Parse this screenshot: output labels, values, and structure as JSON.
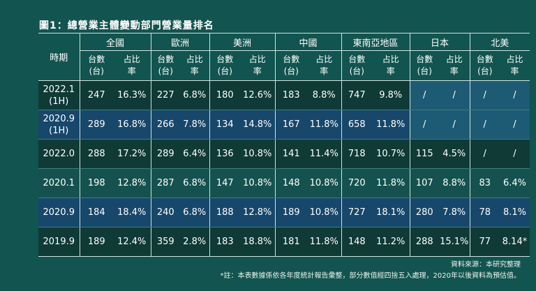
{
  "title": "圖1：總營業主體變動部門營業量排名",
  "header": {
    "period": "時期",
    "groups": [
      "全國",
      "歐洲",
      "美洲",
      "中國",
      "東南亞地區",
      "日本",
      "北美"
    ],
    "sub_count": [
      "台數",
      "(台)"
    ],
    "sub_rate": [
      "占比",
      "率"
    ]
  },
  "rows": [
    {
      "period": [
        "2022.1",
        "(1H)"
      ],
      "values": [
        "247",
        "16.3%",
        "227",
        "6.8%",
        "180",
        "12.6%",
        "183",
        "8.8%",
        "747",
        "9.8%",
        "/",
        "/",
        "/",
        "/"
      ]
    },
    {
      "period": [
        "2020.9",
        "(1H)"
      ],
      "values": [
        "289",
        "16.8%",
        "266",
        "7.8%",
        "134",
        "14.8%",
        "167",
        "11.8%",
        "658",
        "11.8%",
        "/",
        "/",
        "/",
        "/"
      ]
    },
    {
      "period": [
        "2022.0"
      ],
      "values": [
        "288",
        "17.2%",
        "289",
        "6.4%",
        "136",
        "10.8%",
        "141",
        "11.4%",
        "718",
        "10.7%",
        "115",
        "4.5%",
        "/",
        "/"
      ]
    },
    {
      "period": [
        "2020.1"
      ],
      "values": [
        "198",
        "12.8%",
        "287",
        "6.8%",
        "147",
        "10.8%",
        "148",
        "10.8%",
        "720",
        "11.8%",
        "107",
        "8.8%",
        "83",
        "6.4%"
      ]
    },
    {
      "period": [
        "2020.9"
      ],
      "values": [
        "184",
        "18.4%",
        "240",
        "6.8%",
        "188",
        "12.8%",
        "189",
        "10.8%",
        "727",
        "18.1%",
        "280",
        "7.8%",
        "78",
        "8.1%"
      ]
    },
    {
      "period": [
        "2019.9"
      ],
      "values": [
        "189",
        "12.4%",
        "359",
        "2.8%",
        "183",
        "18.8%",
        "181",
        "11.8%",
        "148",
        "11.2%",
        "288",
        "15.1%",
        "77",
        "8.14*"
      ]
    }
  ],
  "notes": [
    "資料來源：本研究整理",
    "*註：本表數據係依各年度統計報告彙整，部分數值經四捨五入處理，2020年以後資料為預估值。"
  ]
}
